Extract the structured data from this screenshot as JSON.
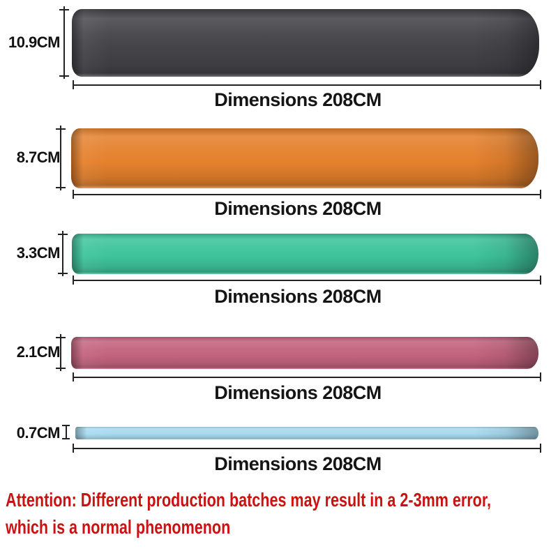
{
  "bands": [
    {
      "width_label": "10.9CM",
      "length_label": "Dimensions 208CM",
      "color": "#454449"
    },
    {
      "width_label": "8.7CM",
      "length_label": "Dimensions 208CM",
      "color": "#E5812D"
    },
    {
      "width_label": "3.3CM",
      "length_label": "Dimensions 208CM",
      "color": "#3EC49B"
    },
    {
      "width_label": "2.1CM",
      "length_label": "Dimensions 208CM",
      "color": "#C4647F"
    },
    {
      "width_label": "0.7CM",
      "length_label": "Dimensions 208CM",
      "color": "#A8DBF0"
    }
  ],
  "attention": {
    "line1": "Attention: Different production batches may result in a 2-3mm error,",
    "line2": "which is a normal phenomenon",
    "color": "#CB1212"
  },
  "measure_line_color": "#222222"
}
